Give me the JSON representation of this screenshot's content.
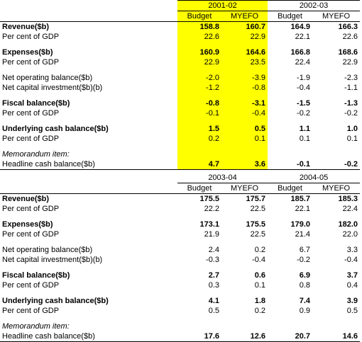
{
  "tables": [
    {
      "years": [
        "2001-02",
        "2002-03"
      ],
      "columns": [
        "Budget",
        "MYEFO",
        "Budget",
        "MYEFO"
      ],
      "rows": [
        {
          "label": "Revenue($b)",
          "cells": [
            "158.8",
            "160.7",
            "164.9",
            "166.3"
          ]
        },
        {
          "label": "Per cent of GDP",
          "cells": [
            "22.6",
            "22.9",
            "22.1",
            "22.6"
          ]
        },
        {
          "label": "Expenses($b)",
          "cells": [
            "160.9",
            "164.6",
            "166.8",
            "168.6"
          ]
        },
        {
          "label": "Per cent of GDP",
          "cells": [
            "22.9",
            "23.5",
            "22.4",
            "22.9"
          ]
        },
        {
          "label": "Net operating balance($b)",
          "cells": [
            "-2.0",
            "-3.9",
            "-1.9",
            "-2.3"
          ]
        },
        {
          "label": "Net capital investment($b)(b)",
          "cells": [
            "-1.2",
            "-0.8",
            "-0.4",
            "-1.1"
          ]
        },
        {
          "label": "Fiscal balance($b)",
          "cells": [
            "-0.8",
            "-3.1",
            "-1.5",
            "-1.3"
          ]
        },
        {
          "label": "Per cent of GDP",
          "cells": [
            "-0.1",
            "-0.4",
            "-0.2",
            "-0.2"
          ]
        },
        {
          "label": "Underlying cash balance($b)",
          "cells": [
            "1.5",
            "0.5",
            "1.1",
            "1.0"
          ]
        },
        {
          "label": "Per cent of GDP",
          "cells": [
            "0.2",
            "0.1",
            "0.1",
            "0.1"
          ]
        },
        {
          "label": "Memorandum item:"
        },
        {
          "label": "Headline cash balance($b)",
          "cells": [
            "4.7",
            "3.6",
            "-0.1",
            "-0.2"
          ]
        }
      ]
    },
    {
      "years": [
        "2003-04",
        "2004-05"
      ],
      "columns": [
        "Budget",
        "MYEFO",
        "Budget",
        "MYEFO"
      ],
      "rows": [
        {
          "label": "Revenue($b)",
          "cells": [
            "175.5",
            "175.7",
            "185.7",
            "185.3"
          ]
        },
        {
          "label": "Per cent of GDP",
          "cells": [
            "22.2",
            "22.5",
            "22.1",
            "22.4"
          ]
        },
        {
          "label": "Expenses($b)",
          "cells": [
            "173.1",
            "175.5",
            "179.0",
            "182.0"
          ]
        },
        {
          "label": "Per cent of GDP",
          "cells": [
            "21.9",
            "22.5",
            "21.4",
            "22.0"
          ]
        },
        {
          "label": "Net operating balance($b)",
          "cells": [
            "2.4",
            "0.2",
            "6.7",
            "3.3"
          ]
        },
        {
          "label": "Net capital investment($b)(b)",
          "cells": [
            "-0.3",
            "-0.4",
            "-0.2",
            "-0.4"
          ]
        },
        {
          "label": "Fiscal balance($b)",
          "cells": [
            "2.7",
            "0.6",
            "6.9",
            "3.7"
          ]
        },
        {
          "label": "Per cent of GDP",
          "cells": [
            "0.3",
            "0.1",
            "0.8",
            "0.4"
          ]
        },
        {
          "label": "Underlying cash balance($b)",
          "cells": [
            "4.1",
            "1.8",
            "7.4",
            "3.9"
          ]
        },
        {
          "label": "Per cent of GDP",
          "cells": [
            "0.5",
            "0.2",
            "0.9",
            "0.5"
          ]
        },
        {
          "label": "Memorandum item:"
        },
        {
          "label": "Headline cash balance($b)",
          "cells": [
            "17.6",
            "12.6",
            "20.7",
            "14.6"
          ]
        }
      ]
    }
  ]
}
